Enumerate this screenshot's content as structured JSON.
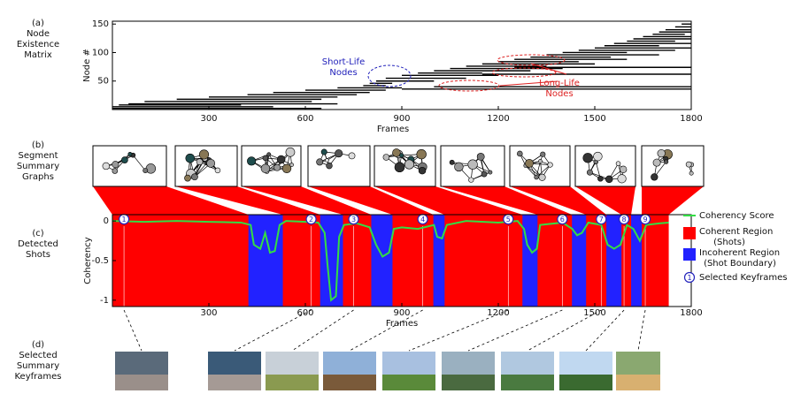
{
  "panels": [
    {
      "tag": "(a)",
      "lines": [
        "Node",
        "Existence",
        "Matrix"
      ]
    },
    {
      "tag": "(b)",
      "lines": [
        "Segment",
        "Summary",
        "Graphs"
      ]
    },
    {
      "tag": "(c)",
      "lines": [
        "Detected",
        "Shots"
      ]
    },
    {
      "tag": "(d)",
      "lines": [
        "Selected",
        "Summary",
        "Keyframes"
      ]
    }
  ],
  "chart_data": [
    {
      "type": "matrix",
      "x_label": "Frames",
      "y_label": "Node #",
      "xlim": [
        0,
        1800
      ],
      "xticks": [
        300,
        600,
        900,
        1200,
        1500,
        1800
      ],
      "ylim": [
        0,
        155
      ],
      "yticks": [
        50,
        100,
        150
      ],
      "color": "#000000",
      "segments": [
        [
          0,
          650,
          2
        ],
        [
          0,
          500,
          5
        ],
        [
          20,
          400,
          8
        ],
        [
          50,
          700,
          10
        ],
        [
          100,
          620,
          14
        ],
        [
          200,
          650,
          18
        ],
        [
          300,
          700,
          22
        ],
        [
          420,
          760,
          26
        ],
        [
          500,
          800,
          30
        ],
        [
          600,
          850,
          34
        ],
        [
          700,
          900,
          38
        ],
        [
          780,
          850,
          42
        ],
        [
          800,
          870,
          46
        ],
        [
          820,
          1000,
          50
        ],
        [
          850,
          1100,
          55
        ],
        [
          900,
          1200,
          60
        ],
        [
          950,
          1150,
          64
        ],
        [
          1000,
          1300,
          68
        ],
        [
          1050,
          1400,
          72
        ],
        [
          1100,
          1350,
          76
        ],
        [
          1150,
          1500,
          80
        ],
        [
          1200,
          1450,
          84
        ],
        [
          1250,
          1600,
          88
        ],
        [
          1300,
          1550,
          92
        ],
        [
          1350,
          1700,
          96
        ],
        [
          1400,
          1600,
          100
        ],
        [
          1450,
          1750,
          104
        ],
        [
          1500,
          1800,
          108
        ],
        [
          1530,
          1700,
          112
        ],
        [
          1560,
          1800,
          116
        ],
        [
          1600,
          1750,
          120
        ],
        [
          1620,
          1800,
          124
        ],
        [
          1650,
          1800,
          128
        ],
        [
          1680,
          1780,
          132
        ],
        [
          1700,
          1800,
          136
        ],
        [
          1720,
          1800,
          140
        ],
        [
          1750,
          1800,
          145
        ],
        [
          1770,
          1800,
          150
        ],
        [
          900,
          1800,
          36
        ],
        [
          1000,
          1800,
          40
        ],
        [
          1150,
          1800,
          62
        ],
        [
          1250,
          1800,
          74
        ]
      ],
      "annotations": [
        {
          "lines": [
            "Short-Life",
            "Nodes"
          ],
          "color": "#2222bb"
        },
        {
          "lines": [
            "Long-Life",
            "Nodes"
          ],
          "color": "#dd2222"
        }
      ]
    },
    {
      "type": "line",
      "x_label": "Frames",
      "y_label": "Coherency",
      "xlim": [
        0,
        1800
      ],
      "xticks": [
        300,
        600,
        900,
        1200,
        1500,
        1800
      ],
      "ylim": [
        -1.08,
        0.08
      ],
      "yticks": [
        0,
        -0.5,
        -1
      ],
      "x": [
        0,
        100,
        200,
        300,
        400,
        430,
        440,
        460,
        475,
        490,
        505,
        520,
        540,
        600,
        640,
        660,
        670,
        680,
        695,
        705,
        720,
        760,
        800,
        820,
        840,
        860,
        875,
        900,
        950,
        1000,
        1010,
        1025,
        1040,
        1100,
        1200,
        1260,
        1280,
        1290,
        1305,
        1320,
        1330,
        1400,
        1430,
        1445,
        1460,
        1480,
        1520,
        1540,
        1560,
        1580,
        1600,
        1620,
        1640,
        1660,
        1700,
        1730
      ],
      "series": [
        {
          "name": "Coherency Score",
          "color": "#33dd44",
          "values": [
            0,
            -0.01,
            0,
            -0.01,
            -0.02,
            -0.05,
            -0.3,
            -0.35,
            -0.15,
            -0.4,
            -0.38,
            -0.05,
            0,
            -0.01,
            -0.02,
            -0.15,
            -0.6,
            -1,
            -0.95,
            -0.2,
            -0.05,
            -0.03,
            -0.08,
            -0.3,
            -0.45,
            -0.4,
            -0.1,
            -0.08,
            -0.1,
            -0.05,
            -0.2,
            -0.22,
            -0.05,
            0,
            -0.02,
            0,
            -0.1,
            -0.3,
            -0.4,
            -0.35,
            -0.05,
            -0.02,
            -0.1,
            -0.18,
            -0.15,
            -0.02,
            -0.05,
            -0.3,
            -0.35,
            -0.3,
            -0.05,
            -0.1,
            -0.25,
            -0.05,
            -0.03,
            -0.02
          ]
        }
      ],
      "coherent": {
        "name": [
          "Coherent Region",
          "(Shots)"
        ],
        "color": "#ff0000",
        "span": [
          0,
          1730
        ]
      },
      "incoherent": {
        "name": [
          "Incoherent Region",
          "(Shot Boundary)"
        ],
        "color": "#2222ff",
        "spans": [
          [
            423,
            530
          ],
          [
            646,
            717
          ],
          [
            805,
            871
          ],
          [
            998,
            1033
          ],
          [
            1275,
            1322
          ],
          [
            1429,
            1473
          ],
          [
            1536,
            1583
          ],
          [
            1613,
            1646
          ]
        ]
      },
      "keyframes": {
        "name": "Selected Keyframes",
        "ids": [
          1,
          2,
          3,
          4,
          5,
          6,
          7,
          8,
          9
        ],
        "x": [
          36,
          618,
          750,
          965,
          1231,
          1399,
          1520,
          1591,
          1657
        ]
      }
    }
  ]
}
